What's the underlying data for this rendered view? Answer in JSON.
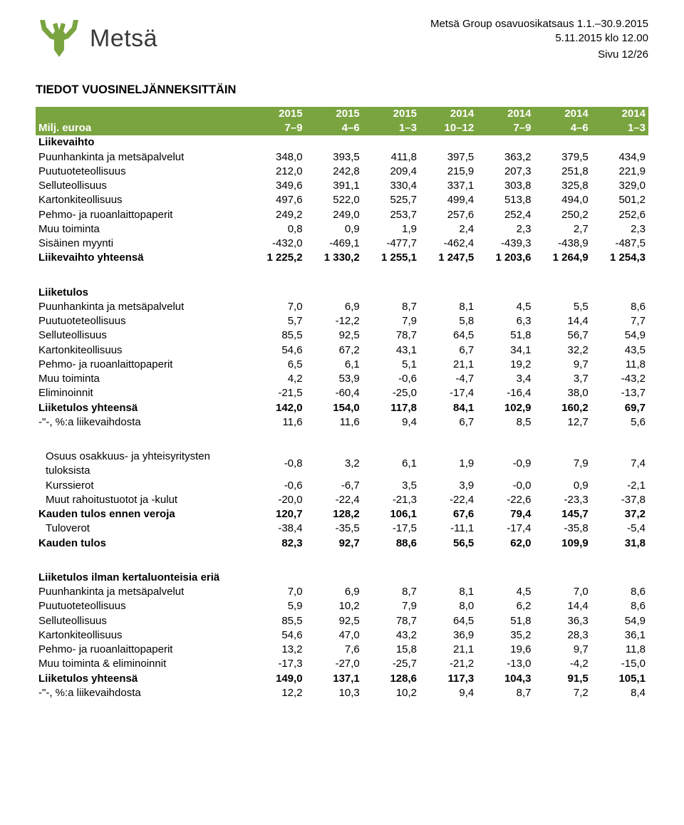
{
  "header": {
    "logo_text": "Metsä",
    "logo_color": "#7aa43f",
    "meta_line1": "Metsä Group osavuosikatsaus 1.1.–30.9.2015",
    "meta_line2": "5.11.2015 klo 12.00",
    "meta_page": "Sivu 12/26"
  },
  "section_title": "TIEDOT VUOSINELJÄNNEKSITTÄIN",
  "col_headers_years": [
    "",
    "2015",
    "2015",
    "2015",
    "2014",
    "2014",
    "2014",
    "2014"
  ],
  "col_headers_periods": [
    "Milj. euroa",
    "7–9",
    "4–6",
    "1–3",
    "10–12",
    "7–9",
    "4–6",
    "1–3"
  ],
  "t1": {
    "subhead": "Liikevaihto",
    "rows": [
      {
        "label": "Puunhankinta ja metsäpalvelut",
        "v": [
          "348,0",
          "393,5",
          "411,8",
          "397,5",
          "363,2",
          "379,5",
          "434,9"
        ]
      },
      {
        "label": "Puutuoteteollisuus",
        "v": [
          "212,0",
          "242,8",
          "209,4",
          "215,9",
          "207,3",
          "251,8",
          "221,9"
        ]
      },
      {
        "label": "Selluteollisuus",
        "v": [
          "349,6",
          "391,1",
          "330,4",
          "337,1",
          "303,8",
          "325,8",
          "329,0"
        ]
      },
      {
        "label": "Kartonkiteollisuus",
        "v": [
          "497,6",
          "522,0",
          "525,7",
          "499,4",
          "513,8",
          "494,0",
          "501,2"
        ]
      },
      {
        "label": "Pehmo- ja ruoanlaittopaperit",
        "v": [
          "249,2",
          "249,0",
          "253,7",
          "257,6",
          "252,4",
          "250,2",
          "252,6"
        ]
      },
      {
        "label": "Muu toiminta",
        "v": [
          "0,8",
          "0,9",
          "1,9",
          "2,4",
          "2,3",
          "2,7",
          "2,3"
        ]
      },
      {
        "label": "Sisäinen myynti",
        "v": [
          "-432,0",
          "-469,1",
          "-477,7",
          "-462,4",
          "-439,3",
          "-438,9",
          "-487,5"
        ]
      }
    ],
    "total": {
      "label": "Liikevaihto yhteensä",
      "v": [
        "1 225,2",
        "1 330,2",
        "1 255,1",
        "1 247,5",
        "1 203,6",
        "1 264,9",
        "1 254,3"
      ]
    }
  },
  "t2": {
    "subhead": "Liiketulos",
    "rows": [
      {
        "label": "Puunhankinta ja metsäpalvelut",
        "v": [
          "7,0",
          "6,9",
          "8,7",
          "8,1",
          "4,5",
          "5,5",
          "8,6"
        ]
      },
      {
        "label": "Puutuoteteollisuus",
        "v": [
          "5,7",
          "-12,2",
          "7,9",
          "5,8",
          "6,3",
          "14,4",
          "7,7"
        ]
      },
      {
        "label": "Selluteollisuus",
        "v": [
          "85,5",
          "92,5",
          "78,7",
          "64,5",
          "51,8",
          "56,7",
          "54,9"
        ]
      },
      {
        "label": "Kartonkiteollisuus",
        "v": [
          "54,6",
          "67,2",
          "43,1",
          "6,7",
          "34,1",
          "32,2",
          "43,5"
        ]
      },
      {
        "label": "Pehmo- ja ruoanlaittopaperit",
        "v": [
          "6,5",
          "6,1",
          "5,1",
          "21,1",
          "19,2",
          "9,7",
          "11,8"
        ]
      },
      {
        "label": "Muu toiminta",
        "v": [
          "4,2",
          "53,9",
          "-0,6",
          "-4,7",
          "3,4",
          "3,7",
          "-43,2"
        ]
      },
      {
        "label": "Eliminoinnit",
        "v": [
          "-21,5",
          "-60,4",
          "-25,0",
          "-17,4",
          "-16,4",
          "38,0",
          "-13,7"
        ]
      }
    ],
    "totals": [
      {
        "label": "Liiketulos yhteensä",
        "v": [
          "142,0",
          "154,0",
          "117,8",
          "84,1",
          "102,9",
          "160,2",
          "69,7"
        ]
      },
      {
        "label": "-\"-, %:a liikevaihdosta",
        "v": [
          "11,6",
          "11,6",
          "9,4",
          "6,7",
          "8,5",
          "12,7",
          "5,6"
        ]
      }
    ]
  },
  "t3": {
    "rows": [
      {
        "label": "Osuus osakkuus- ja yhteisyritysten tuloksista",
        "v": [
          "-0,8",
          "3,2",
          "6,1",
          "1,9",
          "-0,9",
          "7,9",
          "7,4"
        ],
        "indent": true
      },
      {
        "label": "Kurssierot",
        "v": [
          "-0,6",
          "-6,7",
          "3,5",
          "3,9",
          "-0,0",
          "0,9",
          "-2,1"
        ],
        "indent": true
      },
      {
        "label": "Muut rahoitustuotot ja -kulut",
        "v": [
          "-20,0",
          "-22,4",
          "-21,3",
          "-22,4",
          "-22,6",
          "-23,3",
          "-37,8"
        ],
        "indent": true
      }
    ],
    "bold1": {
      "label": "Kauden tulos ennen veroja",
      "v": [
        "120,7",
        "128,2",
        "106,1",
        "67,6",
        "79,4",
        "145,7",
        "37,2"
      ]
    },
    "tax": {
      "label": "Tuloverot",
      "v": [
        "-38,4",
        "-35,5",
        "-17,5",
        "-11,1",
        "-17,4",
        "-35,8",
        "-5,4"
      ],
      "indent": true
    },
    "bold2": {
      "label": "Kauden tulos",
      "v": [
        "82,3",
        "92,7",
        "88,6",
        "56,5",
        "62,0",
        "109,9",
        "31,8"
      ]
    }
  },
  "t4": {
    "subhead": "Liiketulos ilman kertaluonteisia eriä",
    "rows": [
      {
        "label": "Puunhankinta ja metsäpalvelut",
        "v": [
          "7,0",
          "6,9",
          "8,7",
          "8,1",
          "4,5",
          "7,0",
          "8,6"
        ]
      },
      {
        "label": "Puutuoteteollisuus",
        "v": [
          "5,9",
          "10,2",
          "7,9",
          "8,0",
          "6,2",
          "14,4",
          "8,6"
        ]
      },
      {
        "label": "Selluteollisuus",
        "v": [
          "85,5",
          "92,5",
          "78,7",
          "64,5",
          "51,8",
          "36,3",
          "54,9"
        ]
      },
      {
        "label": "Kartonkiteollisuus",
        "v": [
          "54,6",
          "47,0",
          "43,2",
          "36,9",
          "35,2",
          "28,3",
          "36,1"
        ]
      },
      {
        "label": "Pehmo- ja ruoanlaittopaperit",
        "v": [
          "13,2",
          "7,6",
          "15,8",
          "21,1",
          "19,6",
          "9,7",
          "11,8"
        ]
      },
      {
        "label": "Muu toiminta & eliminoinnit",
        "v": [
          "-17,3",
          "-27,0",
          "-25,7",
          "-21,2",
          "-13,0",
          "-4,2",
          "-15,0"
        ]
      }
    ],
    "totals": [
      {
        "label": "Liiketulos yhteensä",
        "v": [
          "149,0",
          "137,1",
          "128,6",
          "117,3",
          "104,3",
          "91,5",
          "105,1"
        ]
      },
      {
        "label": "-\"-, %:a liikevaihdosta",
        "v": [
          "12,2",
          "10,3",
          "10,2",
          "9,4",
          "8,7",
          "7,2",
          "8,4"
        ]
      }
    ]
  }
}
